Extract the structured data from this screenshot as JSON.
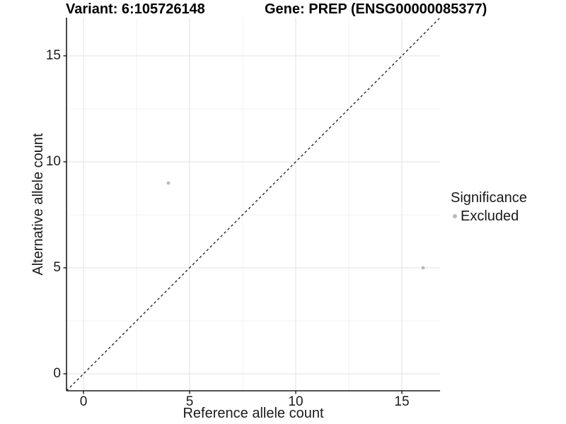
{
  "chart_data": {
    "type": "scatter",
    "titles": {
      "left": "Variant: 6:105726148",
      "right": "Gene: PREP (ENSG00000085377)"
    },
    "xlabel": "Reference allele count",
    "ylabel": "Alternative allele count",
    "xlim": [
      -0.8,
      16.8
    ],
    "ylim": [
      -0.8,
      16.8
    ],
    "x_major_ticks": [
      0,
      5,
      10,
      15
    ],
    "y_major_ticks": [
      0,
      5,
      10,
      15
    ],
    "x_minor_ticks": [
      2.5,
      7.5,
      12.5
    ],
    "y_minor_ticks": [
      2.5,
      7.5,
      12.5
    ],
    "grid": "major+minor",
    "reference_line": {
      "type": "identity",
      "slope": 1,
      "intercept": 0,
      "style": "dashed",
      "color": "#1a1a1a"
    },
    "series": [
      {
        "name": "Excluded",
        "color": "#b9b9b9",
        "points": [
          {
            "x": 4,
            "y": 9
          },
          {
            "x": 16,
            "y": 5
          }
        ]
      }
    ],
    "legend": {
      "title": "Significance",
      "position": "right",
      "entries": [
        {
          "label": "Excluded",
          "color": "#b9b9b9"
        }
      ]
    },
    "colors": {
      "background": "#ffffff",
      "grid_major": "#e6e6e6",
      "grid_minor": "#f1f1f1",
      "axis": "#1a1a1a",
      "tick": "#1a1a1a"
    }
  }
}
